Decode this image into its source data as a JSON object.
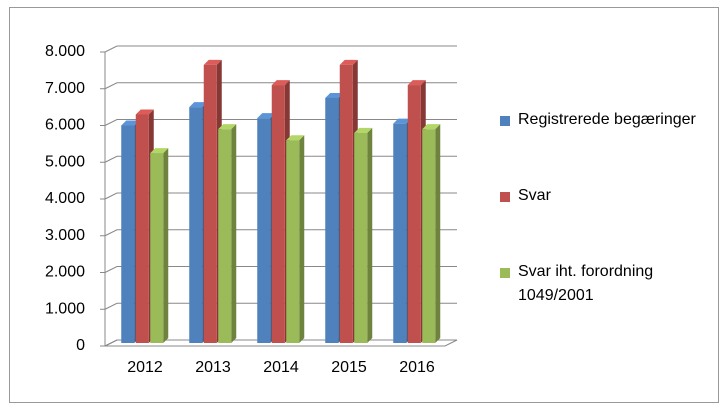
{
  "chart_data": {
    "type": "bar",
    "categories": [
      "2012",
      "2013",
      "2014",
      "2015",
      "2016"
    ],
    "series": [
      {
        "name": "Registrerede begæringer",
        "color": "#4f81bd",
        "values": [
          6000,
          6500,
          6200,
          6750,
          6050
        ]
      },
      {
        "name": "Svar",
        "color": "#c0504d",
        "values": [
          6300,
          7650,
          7100,
          7650,
          7100
        ]
      },
      {
        "name": "Svar iht. forordning 1049/2001",
        "color": "#9bbb59",
        "values": [
          5250,
          5900,
          5600,
          5800,
          5900
        ]
      }
    ],
    "ylim": [
      0,
      8000
    ],
    "yticks": [
      0,
      {
        "value": 1000,
        "label": "1.000"
      },
      {
        "value": 2000,
        "label": "2.000"
      },
      {
        "value": 3000,
        "label": "3.000"
      },
      {
        "value": 4000,
        "label": "4.000"
      },
      {
        "value": 5000,
        "label": "5.000"
      },
      {
        "value": 6000,
        "label": "6.000"
      },
      {
        "value": 7000,
        "label": "7.000"
      },
      {
        "value": 8000,
        "label": "8.000"
      }
    ],
    "grid": true,
    "legend": "right"
  }
}
